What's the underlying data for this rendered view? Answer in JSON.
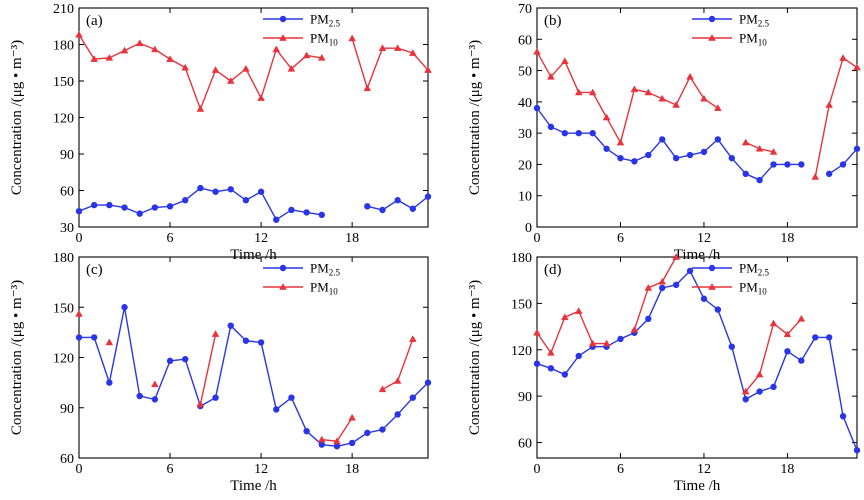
{
  "chart_data": [
    {
      "type": "line",
      "panel_label": "(a)",
      "xlabel": "Time /h",
      "ylabel": "Concentration /(μg • m⁻³)",
      "xlim": [
        0,
        23
      ],
      "ylim": [
        30,
        210
      ],
      "xticks": [
        0,
        6,
        12,
        18
      ],
      "yticks": [
        30,
        60,
        90,
        120,
        150,
        180,
        210
      ],
      "legend_position": "top-right",
      "series": [
        {
          "name": "PM2.5",
          "base": "PM",
          "sub": "2.5",
          "color": "#2a35e6",
          "marker": "circle",
          "x": [
            0,
            1,
            2,
            3,
            4,
            5,
            6,
            7,
            8,
            9,
            10,
            11,
            12,
            13,
            14,
            15,
            16,
            null,
            19,
            20,
            21,
            22,
            23
          ],
          "y": [
            43,
            48,
            48,
            46,
            41,
            46,
            47,
            52,
            62,
            59,
            61,
            52,
            59,
            36,
            44,
            42,
            40,
            null,
            47,
            44,
            52,
            45,
            55
          ]
        },
        {
          "name": "PM10",
          "base": "PM",
          "sub": "10",
          "color": "#e8333c",
          "marker": "triangle",
          "x": [
            0,
            1,
            2,
            3,
            4,
            5,
            6,
            7,
            8,
            9,
            10,
            11,
            12,
            13,
            14,
            15,
            16,
            null,
            18,
            19,
            20,
            21,
            22,
            23
          ],
          "y": [
            188,
            168,
            169,
            175,
            181,
            176,
            168,
            161,
            127,
            159,
            150,
            160,
            136,
            176,
            160,
            171,
            169,
            null,
            185,
            144,
            177,
            177,
            173,
            159
          ]
        }
      ]
    },
    {
      "type": "line",
      "panel_label": "(b)",
      "xlabel": "Time /h",
      "ylabel": "Concentration /(μg • m⁻³)",
      "xlim": [
        0,
        23
      ],
      "ylim": [
        0,
        70
      ],
      "xticks": [
        0,
        6,
        12,
        18
      ],
      "yticks": [
        0,
        10,
        20,
        30,
        40,
        50,
        60,
        70
      ],
      "legend_position": "top-right",
      "series": [
        {
          "name": "PM2.5",
          "base": "PM",
          "sub": "2.5",
          "color": "#2a35e6",
          "marker": "circle",
          "x": [
            0,
            1,
            2,
            3,
            4,
            5,
            6,
            7,
            8,
            9,
            10,
            11,
            12,
            13,
            14,
            15,
            16,
            17,
            18,
            19,
            null,
            21,
            22,
            23
          ],
          "y": [
            38,
            32,
            30,
            30,
            30,
            25,
            22,
            21,
            23,
            28,
            22,
            23,
            24,
            28,
            22,
            17,
            15,
            20,
            20,
            20,
            null,
            17,
            20,
            25
          ]
        },
        {
          "name": "PM10",
          "base": "PM",
          "sub": "10",
          "color": "#e8333c",
          "marker": "triangle",
          "x": [
            0,
            1,
            2,
            3,
            4,
            5,
            6,
            7,
            8,
            9,
            10,
            11,
            12,
            13,
            null,
            15,
            16,
            17,
            null,
            20,
            21,
            22,
            23
          ],
          "y": [
            56,
            48,
            53,
            43,
            43,
            35,
            27,
            44,
            43,
            41,
            39,
            48,
            41,
            38,
            null,
            27,
            25,
            24,
            null,
            16,
            39,
            54,
            51
          ]
        }
      ]
    },
    {
      "type": "line",
      "panel_label": "(c)",
      "xlabel": "Time /h",
      "ylabel": "Concentration /(μg • m⁻³)",
      "xlim": [
        0,
        23
      ],
      "ylim": [
        60,
        180
      ],
      "xticks": [
        0,
        6,
        12,
        18
      ],
      "yticks": [
        60,
        90,
        120,
        150,
        180
      ],
      "legend_position": "top-right",
      "series": [
        {
          "name": "PM2.5",
          "base": "PM",
          "sub": "2.5",
          "color": "#2a35e6",
          "marker": "circle",
          "x": [
            0,
            1,
            2,
            3,
            4,
            5,
            6,
            7,
            8,
            9,
            10,
            11,
            12,
            13,
            14,
            15,
            16,
            17,
            18,
            19,
            20,
            21,
            22,
            23
          ],
          "y": [
            132,
            132,
            105,
            150,
            97,
            95,
            118,
            119,
            91,
            96,
            139,
            130,
            129,
            89,
            96,
            76,
            68,
            67,
            69,
            75,
            77,
            86,
            96,
            105
          ]
        },
        {
          "name": "PM10",
          "base": "PM",
          "sub": "10",
          "color": "#e8333c",
          "marker": "triangle",
          "x": [
            0,
            null,
            2,
            null,
            5,
            null,
            8,
            9,
            null,
            16,
            17,
            18,
            null,
            20,
            21,
            22
          ],
          "y": [
            146,
            null,
            129,
            null,
            104,
            null,
            92,
            134,
            null,
            71,
            70,
            84,
            null,
            101,
            106,
            131
          ]
        }
      ]
    },
    {
      "type": "line",
      "panel_label": "(d)",
      "xlabel": "Time /h",
      "ylabel": "Concentration /(μg • m⁻³)",
      "xlim": [
        0,
        23
      ],
      "ylim": [
        50,
        180
      ],
      "xticks": [
        0,
        6,
        12,
        18
      ],
      "yticks": [
        60,
        90,
        120,
        150,
        180
      ],
      "legend_position": "top-right",
      "series": [
        {
          "name": "PM2.5",
          "base": "PM",
          "sub": "2.5",
          "color": "#2a35e6",
          "marker": "circle",
          "x": [
            0,
            1,
            2,
            3,
            4,
            5,
            6,
            7,
            8,
            9,
            10,
            11,
            12,
            13,
            14,
            15,
            16,
            17,
            18,
            19,
            20,
            21,
            22,
            23
          ],
          "y": [
            111,
            108,
            104,
            116,
            122,
            122,
            127,
            131,
            140,
            160,
            162,
            171,
            153,
            146,
            122,
            88,
            93,
            96,
            119,
            113,
            128,
            128,
            77,
            55
          ]
        },
        {
          "name": "PM10",
          "base": "PM",
          "sub": "10",
          "color": "#e8333c",
          "marker": "triangle",
          "x": [
            0,
            1,
            2,
            3,
            4,
            5,
            null,
            7,
            8,
            9,
            10,
            null,
            15,
            16,
            17,
            18,
            19
          ],
          "y": [
            131,
            118,
            141,
            145,
            124,
            124,
            null,
            133,
            160,
            164,
            180,
            null,
            93,
            104,
            137,
            130,
            140
          ]
        }
      ]
    }
  ]
}
